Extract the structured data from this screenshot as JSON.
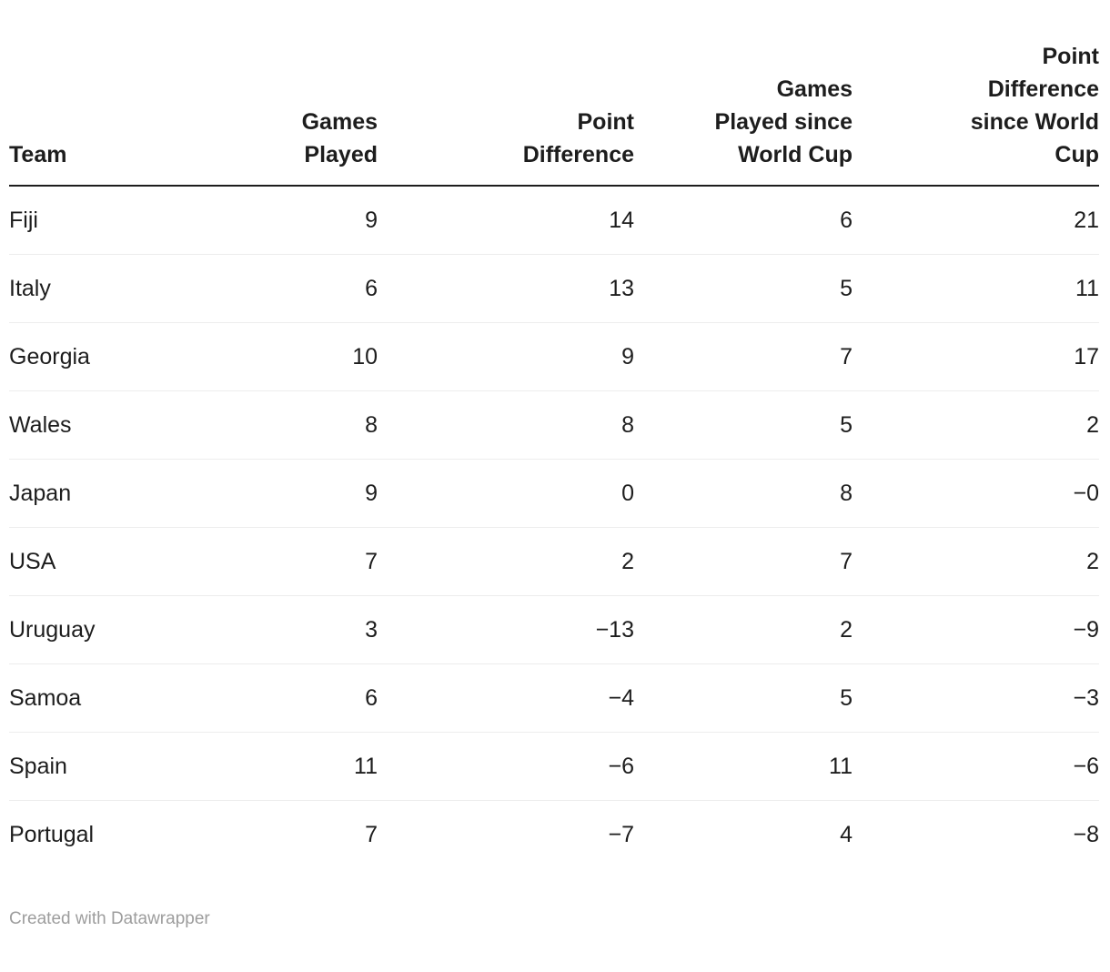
{
  "colors": {
    "text": "#1d1d1d",
    "header_rule": "#1d1d1d",
    "row_separator": "#ededed",
    "credit_text": "#9d9d9d",
    "background": "#ffffff"
  },
  "chart_data": {
    "type": "table",
    "grid": "horizontal-row-lines",
    "columns": [
      {
        "label": "Team",
        "lines": [
          "Team"
        ],
        "align": "left"
      },
      {
        "label": "Games Played",
        "lines": [
          "Games",
          "Played"
        ],
        "align": "right"
      },
      {
        "label": "Point Difference",
        "lines": [
          "Point",
          "Difference"
        ],
        "align": "right"
      },
      {
        "label": "Games Played since World Cup",
        "lines": [
          "Games",
          "Played since",
          "World Cup"
        ],
        "align": "right"
      },
      {
        "label": "Point Difference since World Cup",
        "lines": [
          "Point",
          "Difference",
          "since World",
          "Cup"
        ],
        "align": "right"
      }
    ],
    "rows": [
      {
        "team": "Fiji",
        "games_played": "9",
        "point_difference": "14",
        "games_played_since_wc": "6",
        "point_difference_since_wc": "21"
      },
      {
        "team": "Italy",
        "games_played": "6",
        "point_difference": "13",
        "games_played_since_wc": "5",
        "point_difference_since_wc": "11"
      },
      {
        "team": "Georgia",
        "games_played": "10",
        "point_difference": "9",
        "games_played_since_wc": "7",
        "point_difference_since_wc": "17"
      },
      {
        "team": "Wales",
        "games_played": "8",
        "point_difference": "8",
        "games_played_since_wc": "5",
        "point_difference_since_wc": "2"
      },
      {
        "team": "Japan",
        "games_played": "9",
        "point_difference": "0",
        "games_played_since_wc": "8",
        "point_difference_since_wc": "−0"
      },
      {
        "team": "USA",
        "games_played": "7",
        "point_difference": "2",
        "games_played_since_wc": "7",
        "point_difference_since_wc": "2"
      },
      {
        "team": "Uruguay",
        "games_played": "3",
        "point_difference": "−13",
        "games_played_since_wc": "2",
        "point_difference_since_wc": "−9"
      },
      {
        "team": "Samoa",
        "games_played": "6",
        "point_difference": "−4",
        "games_played_since_wc": "5",
        "point_difference_since_wc": "−3"
      },
      {
        "team": "Spain",
        "games_played": "11",
        "point_difference": "−6",
        "games_played_since_wc": "11",
        "point_difference_since_wc": "−6"
      },
      {
        "team": "Portugal",
        "games_played": "7",
        "point_difference": "−7",
        "games_played_since_wc": "4",
        "point_difference_since_wc": "−8"
      }
    ]
  },
  "footer": {
    "credit": "Created with Datawrapper"
  }
}
